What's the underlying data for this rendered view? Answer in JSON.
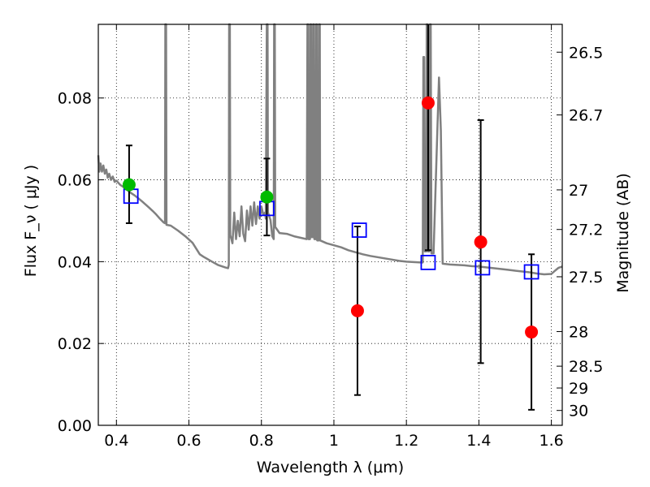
{
  "chart_data": {
    "type": "scatter",
    "xlabel": "Wavelength  λ (μm)",
    "ylabel_left": "Flux  F_ν  ( μJy )",
    "ylabel_right": "Magnitude (AB)",
    "xlim": [
      0.35,
      1.63
    ],
    "ylim": [
      0.0,
      0.098
    ],
    "x_ticks": [
      0.4,
      0.6,
      0.8,
      1.0,
      1.2,
      1.4,
      1.6
    ],
    "x_tick_labels": [
      "0.4",
      "0.6",
      "0.8",
      "1",
      "1.2",
      "1.4",
      "1.6"
    ],
    "y_ticks": [
      0.0,
      0.02,
      0.04,
      0.06,
      0.08
    ],
    "y_tick_labels": [
      "0.00",
      "0.02",
      "0.04",
      "0.06",
      "0.08"
    ],
    "right_ticks": [
      {
        "mag": 26.5,
        "label": "26.5"
      },
      {
        "mag": 26.7,
        "label": "26.7"
      },
      {
        "mag": 27.0,
        "label": "27"
      },
      {
        "mag": 27.2,
        "label": "27.2"
      },
      {
        "mag": 27.5,
        "label": "27.5"
      },
      {
        "mag": 28.0,
        "label": "28"
      },
      {
        "mag": 28.5,
        "label": "28.5"
      },
      {
        "mag": 29.0,
        "label": "29"
      },
      {
        "mag": 30.0,
        "label": "30"
      }
    ],
    "grid": true,
    "model_spectrum": {
      "color": "#808080",
      "points": [
        [
          0.35,
          0.066
        ],
        [
          0.353,
          0.062
        ],
        [
          0.356,
          0.064
        ],
        [
          0.36,
          0.062
        ],
        [
          0.364,
          0.0635
        ],
        [
          0.368,
          0.0615
        ],
        [
          0.372,
          0.0625
        ],
        [
          0.376,
          0.0605
        ],
        [
          0.38,
          0.0615
        ],
        [
          0.385,
          0.06
        ],
        [
          0.39,
          0.0608
        ],
        [
          0.395,
          0.0595
        ],
        [
          0.4,
          0.0598
        ],
        [
          0.41,
          0.0588
        ],
        [
          0.42,
          0.0582
        ],
        [
          0.43,
          0.0575
        ],
        [
          0.44,
          0.0568
        ],
        [
          0.45,
          0.0562
        ],
        [
          0.46,
          0.0555
        ],
        [
          0.47,
          0.0548
        ],
        [
          0.48,
          0.054
        ],
        [
          0.49,
          0.0532
        ],
        [
          0.5,
          0.0524
        ],
        [
          0.51,
          0.0515
        ],
        [
          0.52,
          0.0505
        ],
        [
          0.53,
          0.0496
        ],
        [
          0.534,
          0.0494
        ],
        [
          0.535,
          0.098
        ],
        [
          0.537,
          0.098
        ],
        [
          0.538,
          0.049
        ],
        [
          0.55,
          0.0488
        ],
        [
          0.57,
          0.0476
        ],
        [
          0.59,
          0.0462
        ],
        [
          0.61,
          0.0446
        ],
        [
          0.62,
          0.0432
        ],
        [
          0.63,
          0.0418
        ],
        [
          0.64,
          0.0412
        ],
        [
          0.66,
          0.0402
        ],
        [
          0.68,
          0.0392
        ],
        [
          0.7,
          0.0386
        ],
        [
          0.708,
          0.0384
        ],
        [
          0.71,
          0.0392
        ],
        [
          0.711,
          0.098
        ],
        [
          0.713,
          0.098
        ],
        [
          0.714,
          0.0465
        ],
        [
          0.72,
          0.0445
        ],
        [
          0.725,
          0.052
        ],
        [
          0.73,
          0.0455
        ],
        [
          0.735,
          0.05
        ],
        [
          0.74,
          0.0462
        ],
        [
          0.745,
          0.0535
        ],
        [
          0.75,
          0.0468
        ],
        [
          0.755,
          0.045
        ],
        [
          0.76,
          0.0525
        ],
        [
          0.765,
          0.0478
        ],
        [
          0.77,
          0.0535
        ],
        [
          0.775,
          0.0488
        ],
        [
          0.78,
          0.0545
        ],
        [
          0.785,
          0.0492
        ],
        [
          0.79,
          0.0535
        ],
        [
          0.795,
          0.0505
        ],
        [
          0.8,
          0.0535
        ],
        [
          0.805,
          0.0515
        ],
        [
          0.81,
          0.052
        ],
        [
          0.812,
          0.0505
        ],
        [
          0.815,
          0.098
        ],
        [
          0.817,
          0.098
        ],
        [
          0.818,
          0.052
        ],
        [
          0.82,
          0.0515
        ],
        [
          0.825,
          0.0502
        ],
        [
          0.83,
          0.0462
        ],
        [
          0.834,
          0.0455
        ],
        [
          0.835,
          0.098
        ],
        [
          0.837,
          0.098
        ],
        [
          0.838,
          0.0485
        ],
        [
          0.85,
          0.047
        ],
        [
          0.87,
          0.0468
        ],
        [
          0.89,
          0.0462
        ],
        [
          0.91,
          0.0458
        ],
        [
          0.925,
          0.0455
        ],
        [
          0.927,
          0.098
        ],
        [
          0.929,
          0.098
        ],
        [
          0.93,
          0.0455
        ],
        [
          0.934,
          0.0455
        ],
        [
          0.935,
          0.098
        ],
        [
          0.937,
          0.098
        ],
        [
          0.938,
          0.046
        ],
        [
          0.942,
          0.046
        ],
        [
          0.943,
          0.098
        ],
        [
          0.945,
          0.098
        ],
        [
          0.946,
          0.0455
        ],
        [
          0.95,
          0.0455
        ],
        [
          0.951,
          0.098
        ],
        [
          0.953,
          0.098
        ],
        [
          0.954,
          0.0452
        ],
        [
          0.958,
          0.0452
        ],
        [
          0.959,
          0.098
        ],
        [
          0.961,
          0.098
        ],
        [
          0.962,
          0.0452
        ],
        [
          0.98,
          0.0445
        ],
        [
          1.0,
          0.044
        ],
        [
          1.02,
          0.0435
        ],
        [
          1.04,
          0.0428
        ],
        [
          1.06,
          0.0423
        ],
        [
          1.08,
          0.0418
        ],
        [
          1.1,
          0.0414
        ],
        [
          1.12,
          0.0411
        ],
        [
          1.14,
          0.0408
        ],
        [
          1.16,
          0.0405
        ],
        [
          1.18,
          0.0402
        ],
        [
          1.2,
          0.04
        ],
        [
          1.22,
          0.0399
        ],
        [
          1.24,
          0.0398
        ],
        [
          1.245,
          0.0398
        ],
        [
          1.247,
          0.09
        ],
        [
          1.249,
          0.09
        ],
        [
          1.251,
          0.0425
        ],
        [
          1.255,
          0.0425
        ],
        [
          1.256,
          0.098
        ],
        [
          1.258,
          0.098
        ],
        [
          1.26,
          0.0425
        ],
        [
          1.263,
          0.0425
        ],
        [
          1.265,
          0.098
        ],
        [
          1.267,
          0.098
        ],
        [
          1.269,
          0.042
        ],
        [
          1.275,
          0.042
        ],
        [
          1.29,
          0.085
        ],
        [
          1.295,
          0.072
        ],
        [
          1.3,
          0.0395
        ],
        [
          1.32,
          0.0393
        ],
        [
          1.34,
          0.0392
        ],
        [
          1.36,
          0.0391
        ],
        [
          1.38,
          0.0389
        ],
        [
          1.4,
          0.0388
        ],
        [
          1.42,
          0.0386
        ],
        [
          1.44,
          0.0384
        ],
        [
          1.46,
          0.0382
        ],
        [
          1.48,
          0.038
        ],
        [
          1.5,
          0.0378
        ],
        [
          1.52,
          0.0376
        ],
        [
          1.54,
          0.0374
        ],
        [
          1.56,
          0.0371
        ],
        [
          1.58,
          0.0369
        ],
        [
          1.6,
          0.037
        ],
        [
          1.61,
          0.0378
        ],
        [
          1.62,
          0.0385
        ],
        [
          1.63,
          0.0388
        ]
      ]
    },
    "model_photometry": {
      "color": "#0000ff",
      "points": [
        {
          "x": 0.44,
          "y": 0.056
        },
        {
          "x": 0.815,
          "y": 0.053
        },
        {
          "x": 1.07,
          "y": 0.0477
        },
        {
          "x": 1.26,
          "y": 0.0398
        },
        {
          "x": 1.41,
          "y": 0.0385
        },
        {
          "x": 1.545,
          "y": 0.0375
        }
      ]
    },
    "observed_detections": {
      "color": "#00bb00",
      "points": [
        {
          "x": 0.435,
          "y": 0.0588,
          "err_low": 0.0494,
          "err_high": 0.0684
        },
        {
          "x": 0.815,
          "y": 0.0558,
          "err_low": 0.0464,
          "err_high": 0.0652
        }
      ]
    },
    "observed_other": {
      "color": "#ff0000",
      "points": [
        {
          "x": 1.065,
          "y": 0.028,
          "err_low": 0.0074,
          "err_high": 0.0486
        },
        {
          "x": 1.26,
          "y": 0.0788,
          "err_low": 0.0428,
          "err_high": 0.1
        },
        {
          "x": 1.405,
          "y": 0.0448,
          "err_low": 0.0152,
          "err_high": 0.0746
        },
        {
          "x": 1.545,
          "y": 0.0228,
          "err_low": 0.0038,
          "err_high": 0.0418
        }
      ]
    }
  }
}
